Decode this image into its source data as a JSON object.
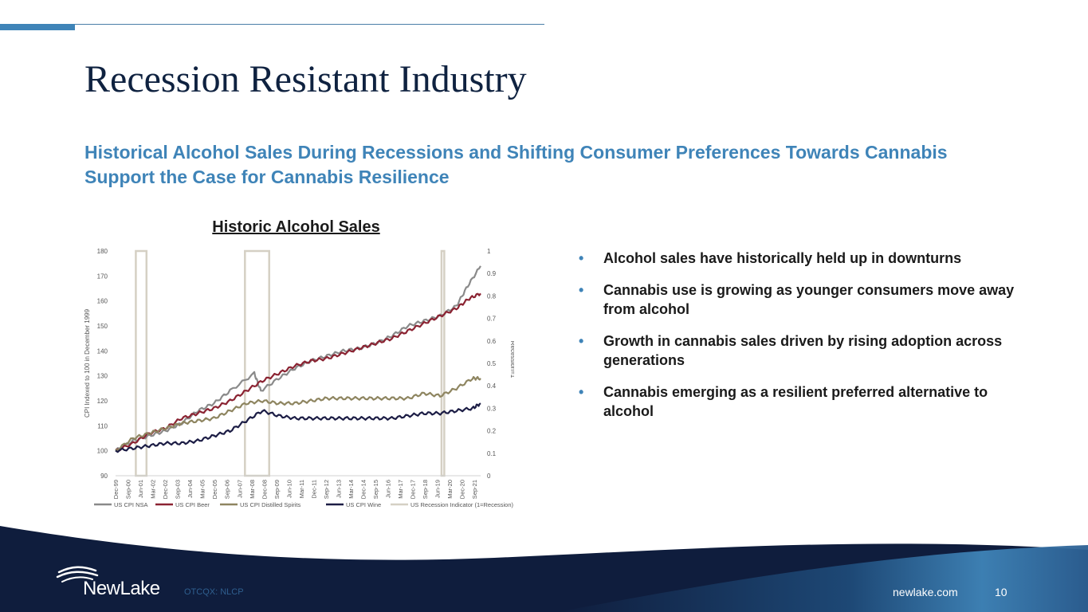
{
  "slide": {
    "title": "Recession Resistant Industry",
    "subtitle": "Historical Alcohol Sales During Recessions and Shifting Consumer Preferences Towards Cannabis Support the Case for Cannabis Resilience",
    "chart_heading": "Historic Alcohol Sales",
    "bullets": [
      "Alcohol sales have historically held up in downturns",
      "Cannabis use is growing as younger consumers move away from alcohol",
      "Growth in cannabis sales driven by rising adoption across generations",
      "Cannabis emerging as a resilient preferred alternative to alcohol"
    ],
    "bullet_char": "•"
  },
  "footer": {
    "logo_text": "NewLake",
    "ticker": "OTCQX: NLCP",
    "site": "newlake.com",
    "page_number": "10"
  },
  "colors": {
    "title": "#0f2240",
    "accent": "#3f84b8",
    "footer_navy": "#0f1d3d",
    "cpi_nsa": "#8a8a8a",
    "cpi_beer": "#8b2332",
    "cpi_spirits": "#8e8560",
    "cpi_wine": "#1c1d45",
    "recession": "#d5d0c4"
  },
  "chart_data": {
    "type": "line",
    "ylabel": "CPI Indexed to 100 in December 1999",
    "y2label": "Recession=1",
    "ylim": [
      90,
      180
    ],
    "y_ticks": [
      90,
      100,
      110,
      120,
      130,
      140,
      150,
      160,
      170,
      180
    ],
    "y2lim": [
      0,
      1
    ],
    "y2_ticks": [
      "0",
      "0.1",
      "0.2",
      "0.3",
      "0.4",
      "0.5",
      "0.6",
      "0.7",
      "0.8",
      "0.9",
      "1"
    ],
    "xlim": [
      1999.917,
      2022.5
    ],
    "x_ticks": [
      "Dec-99",
      "Sep-00",
      "Jun-01",
      "Mar-02",
      "Dec-02",
      "Sep-03",
      "Jun-04",
      "Mar-05",
      "Dec-05",
      "Sep-06",
      "Jun-07",
      "Mar-08",
      "Dec-08",
      "Sep-09",
      "Jun-10",
      "Mar-11",
      "Dec-11",
      "Sep-12",
      "Jun-13",
      "Mar-14",
      "Dec-14",
      "Sep-15",
      "Jun-16",
      "Mar-17",
      "Dec-17",
      "Sep-18",
      "Jun-19",
      "Mar-20",
      "Dec-20",
      "Sep-21"
    ],
    "grid": false,
    "legend_position": "bottom",
    "series": [
      {
        "name": "US CPI NSA",
        "color": "#8a8a8a",
        "points": [
          [
            1999.917,
            100
          ],
          [
            2001,
            104
          ],
          [
            2002,
            106
          ],
          [
            2003,
            108
          ],
          [
            2004,
            111
          ],
          [
            2005,
            116
          ],
          [
            2006,
            119
          ],
          [
            2007,
            124
          ],
          [
            2008.5,
            131
          ],
          [
            2008.9,
            124
          ],
          [
            2010,
            129
          ],
          [
            2011,
            133
          ],
          [
            2012,
            136
          ],
          [
            2013,
            138
          ],
          [
            2014,
            140
          ],
          [
            2015,
            141
          ],
          [
            2016,
            143
          ],
          [
            2017,
            146
          ],
          [
            2018,
            150
          ],
          [
            2019,
            152
          ],
          [
            2020,
            154
          ],
          [
            2021,
            158
          ],
          [
            2021.7,
            166
          ],
          [
            2022.5,
            174
          ]
        ]
      },
      {
        "name": "US CPI Beer",
        "color": "#8b2332",
        "points": [
          [
            1999.917,
            100
          ],
          [
            2001,
            103
          ],
          [
            2002,
            107
          ],
          [
            2003,
            109
          ],
          [
            2004,
            113
          ],
          [
            2005,
            115
          ],
          [
            2006,
            117
          ],
          [
            2007,
            120
          ],
          [
            2008,
            124
          ],
          [
            2009,
            128
          ],
          [
            2010,
            131
          ],
          [
            2011,
            134
          ],
          [
            2012,
            136
          ],
          [
            2013,
            137
          ],
          [
            2014,
            139
          ],
          [
            2015,
            141
          ],
          [
            2016,
            143
          ],
          [
            2017,
            145
          ],
          [
            2018,
            148
          ],
          [
            2019,
            151
          ],
          [
            2020,
            154
          ],
          [
            2021,
            157
          ],
          [
            2021.8,
            161
          ],
          [
            2022.5,
            163
          ]
        ]
      },
      {
        "name": "US CPI Distilled Spirits",
        "color": "#8e8560",
        "points": [
          [
            1999.917,
            100
          ],
          [
            2001,
            105
          ],
          [
            2002,
            107
          ],
          [
            2003,
            109
          ],
          [
            2004,
            111
          ],
          [
            2005,
            112
          ],
          [
            2006,
            113
          ],
          [
            2007,
            116
          ],
          [
            2008,
            119
          ],
          [
            2009,
            120
          ],
          [
            2010,
            119
          ],
          [
            2011,
            119
          ],
          [
            2012,
            120
          ],
          [
            2013,
            121
          ],
          [
            2014,
            121
          ],
          [
            2015,
            121
          ],
          [
            2016,
            121
          ],
          [
            2017,
            121
          ],
          [
            2018,
            121
          ],
          [
            2019,
            123
          ],
          [
            2020,
            122
          ],
          [
            2021,
            125
          ],
          [
            2022,
            129
          ],
          [
            2022.5,
            129
          ]
        ]
      },
      {
        "name": "US CPI Wine",
        "color": "#1c1d45",
        "points": [
          [
            1999.917,
            100
          ],
          [
            2001,
            101
          ],
          [
            2002,
            102
          ],
          [
            2003,
            103
          ],
          [
            2004,
            103
          ],
          [
            2005,
            104
          ],
          [
            2006,
            106
          ],
          [
            2007,
            108
          ],
          [
            2008,
            112
          ],
          [
            2009,
            116
          ],
          [
            2010,
            114
          ],
          [
            2011,
            113
          ],
          [
            2012,
            113
          ],
          [
            2013,
            113
          ],
          [
            2014,
            113
          ],
          [
            2015,
            113
          ],
          [
            2016,
            113
          ],
          [
            2017,
            113
          ],
          [
            2018,
            114
          ],
          [
            2019,
            115
          ],
          [
            2020,
            115
          ],
          [
            2021,
            116
          ],
          [
            2022,
            117
          ],
          [
            2022.5,
            119
          ]
        ]
      }
    ],
    "recessions": {
      "name": "US Recession Indicator (1=Recession)",
      "color": "#d5d0c4",
      "periods": [
        [
          2001.17,
          2001.83
        ],
        [
          2007.92,
          2009.42
        ],
        [
          2020.08,
          2020.25
        ]
      ]
    }
  }
}
